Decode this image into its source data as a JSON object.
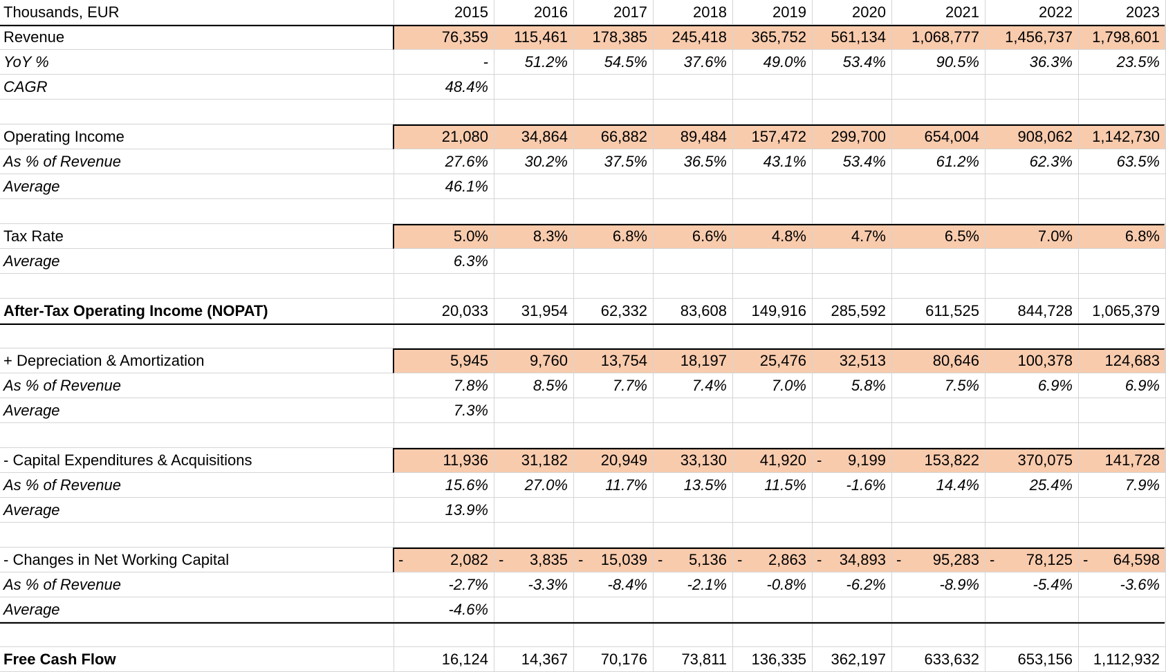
{
  "header": {
    "unit_label": "Thousands, EUR",
    "years": [
      "2015",
      "2016",
      "2017",
      "2018",
      "2019",
      "2020",
      "2021",
      "2022",
      "2023"
    ]
  },
  "rows": [
    {
      "label": "Revenue",
      "style": "hl",
      "values": [
        "76,359",
        "115,461",
        "178,385",
        "245,418",
        "365,752",
        "561,134",
        "1,068,777",
        "1,456,737",
        "1,798,601"
      ]
    },
    {
      "label": "YoY %",
      "style": "i",
      "values": [
        "-",
        "51.2%",
        "54.5%",
        "37.6%",
        "49.0%",
        "53.4%",
        "90.5%",
        "36.3%",
        "23.5%"
      ]
    },
    {
      "label": "CAGR",
      "style": "i",
      "values": [
        "48.4%",
        "",
        "",
        "",
        "",
        "",
        "",
        "",
        ""
      ]
    },
    {
      "label": "",
      "style": "",
      "values": [
        "",
        "",
        "",
        "",
        "",
        "",
        "",
        "",
        ""
      ]
    },
    {
      "label": "Operating Income",
      "style": "hl",
      "values": [
        "21,080",
        "34,864",
        "66,882",
        "89,484",
        "157,472",
        "299,700",
        "654,004",
        "908,062",
        "1,142,730"
      ]
    },
    {
      "label": "As % of Revenue",
      "style": "i",
      "values": [
        "27.6%",
        "30.2%",
        "37.5%",
        "36.5%",
        "43.1%",
        "53.4%",
        "61.2%",
        "62.3%",
        "63.5%"
      ]
    },
    {
      "label": "Average",
      "style": "i",
      "values": [
        "46.1%",
        "",
        "",
        "",
        "",
        "",
        "",
        "",
        ""
      ]
    },
    {
      "label": "",
      "style": "",
      "values": [
        "",
        "",
        "",
        "",
        "",
        "",
        "",
        "",
        ""
      ]
    },
    {
      "label": "Tax Rate",
      "style": "hl",
      "values": [
        "5.0%",
        "8.3%",
        "6.8%",
        "6.6%",
        "4.8%",
        "4.7%",
        "6.5%",
        "7.0%",
        "6.8%"
      ]
    },
    {
      "label": "Average",
      "style": "i",
      "values": [
        "6.3%",
        "",
        "",
        "",
        "",
        "",
        "",
        "",
        ""
      ]
    },
    {
      "label": "",
      "style": "",
      "values": [
        "",
        "",
        "",
        "",
        "",
        "",
        "",
        "",
        ""
      ]
    },
    {
      "label": "After-Tax Operating Income (NOPAT)",
      "style": "b",
      "values": [
        "20,033",
        "31,954",
        "62,332",
        "83,608",
        "149,916",
        "285,592",
        "611,525",
        "844,728",
        "1,065,379"
      ]
    },
    {
      "label": "",
      "style": "",
      "values": [
        "",
        "",
        "",
        "",
        "",
        "",
        "",
        "",
        ""
      ]
    },
    {
      "label": "+ Depreciation & Amortization",
      "style": "hl",
      "values": [
        "5,945",
        "9,760",
        "13,754",
        "18,197",
        "25,476",
        "32,513",
        "80,646",
        "100,378",
        "124,683"
      ]
    },
    {
      "label": "As % of Revenue",
      "style": "i",
      "values": [
        "7.8%",
        "8.5%",
        "7.7%",
        "7.4%",
        "7.0%",
        "5.8%",
        "7.5%",
        "6.9%",
        "6.9%"
      ]
    },
    {
      "label": "Average",
      "style": "i",
      "values": [
        "7.3%",
        "",
        "",
        "",
        "",
        "",
        "",
        "",
        ""
      ]
    },
    {
      "label": "",
      "style": "",
      "values": [
        "",
        "",
        "",
        "",
        "",
        "",
        "",
        "",
        ""
      ]
    },
    {
      "label": "- Capital Expenditures & Acquisitions",
      "style": "hl",
      "values": [
        "11,936",
        "31,182",
        "20,949",
        "33,130",
        "41,920",
        "9,199",
        "153,822",
        "370,075",
        "141,728"
      ],
      "neg": [
        false,
        false,
        false,
        false,
        false,
        true,
        false,
        false,
        false
      ]
    },
    {
      "label": "As % of Revenue",
      "style": "i",
      "values": [
        "15.6%",
        "27.0%",
        "11.7%",
        "13.5%",
        "11.5%",
        "-1.6%",
        "14.4%",
        "25.4%",
        "7.9%"
      ]
    },
    {
      "label": "Average",
      "style": "i",
      "values": [
        "13.9%",
        "",
        "",
        "",
        "",
        "",
        "",
        "",
        ""
      ]
    },
    {
      "label": "",
      "style": "",
      "values": [
        "",
        "",
        "",
        "",
        "",
        "",
        "",
        "",
        ""
      ]
    },
    {
      "label": "- Changes in Net Working Capital",
      "style": "hl",
      "values": [
        "2,082",
        "3,835",
        "15,039",
        "5,136",
        "2,863",
        "34,893",
        "95,283",
        "78,125",
        "64,598"
      ],
      "neg": [
        true,
        true,
        true,
        true,
        true,
        true,
        true,
        true,
        true
      ]
    },
    {
      "label": "As % of Revenue",
      "style": "i",
      "values": [
        "-2.7%",
        "-3.3%",
        "-8.4%",
        "-2.1%",
        "-0.8%",
        "-6.2%",
        "-8.9%",
        "-5.4%",
        "-3.6%"
      ]
    },
    {
      "label": "Average",
      "style": "i",
      "values": [
        "-4.6%",
        "",
        "",
        "",
        "",
        "",
        "",
        "",
        ""
      ]
    },
    {
      "label": "",
      "style": "",
      "values": [
        "",
        "",
        "",
        "",
        "",
        "",
        "",
        "",
        ""
      ]
    },
    {
      "label": "Free Cash Flow",
      "style": "b",
      "values": [
        "16,124",
        "14,367",
        "70,176",
        "73,811",
        "136,335",
        "362,197",
        "633,632",
        "653,156",
        "1,112,932"
      ]
    }
  ]
}
